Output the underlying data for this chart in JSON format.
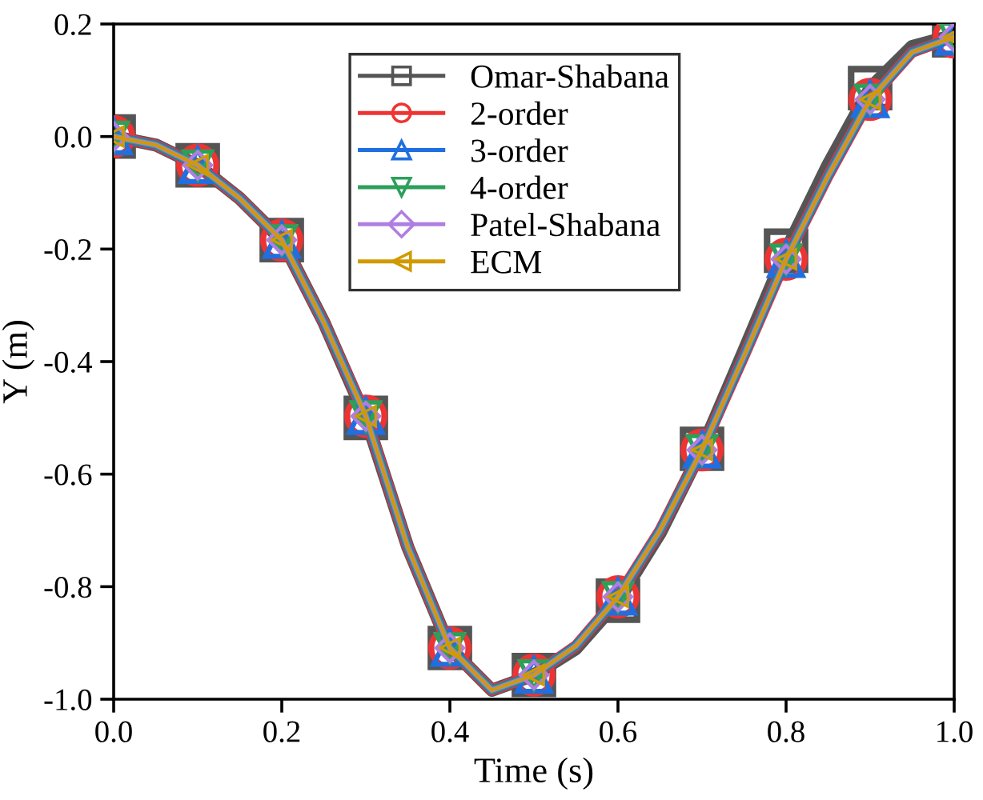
{
  "chart_data": {
    "type": "line",
    "xlabel": "Time (s)",
    "ylabel": "Y (m)",
    "x": [
      0.0,
      0.05,
      0.1,
      0.15,
      0.2,
      0.25,
      0.3,
      0.35,
      0.4,
      0.45,
      0.5,
      0.55,
      0.6,
      0.65,
      0.7,
      0.75,
      0.8,
      0.85,
      0.9,
      0.95,
      1.0
    ],
    "series": [
      {
        "name": "Omar-Shabana",
        "color": "#555555",
        "marker": "square",
        "values": [
          0.0,
          -0.015,
          -0.051,
          -0.11,
          -0.184,
          -0.33,
          -0.5,
          -0.73,
          -0.909,
          -0.984,
          -0.957,
          -0.91,
          -0.825,
          -0.705,
          -0.555,
          -0.38,
          -0.203,
          -0.05,
          0.086,
          0.16,
          0.18
        ]
      },
      {
        "name": "2-order",
        "color": "#ee3333",
        "marker": "circle",
        "values": [
          0.0,
          -0.015,
          -0.051,
          -0.11,
          -0.184,
          -0.33,
          -0.497,
          -0.73,
          -0.909,
          -0.984,
          -0.957,
          -0.905,
          -0.818,
          -0.7,
          -0.557,
          -0.39,
          -0.218,
          -0.07,
          0.066,
          0.15,
          0.177
        ]
      },
      {
        "name": "3-order",
        "color": "#1f6fe0",
        "marker": "triangle",
        "values": [
          0.0,
          -0.015,
          -0.051,
          -0.11,
          -0.184,
          -0.33,
          -0.497,
          -0.73,
          -0.909,
          -0.984,
          -0.957,
          -0.905,
          -0.818,
          -0.7,
          -0.557,
          -0.39,
          -0.218,
          -0.07,
          0.066,
          0.15,
          0.177
        ]
      },
      {
        "name": "4-order",
        "color": "#2ca05a",
        "marker": "triangle-down",
        "values": [
          0.0,
          -0.015,
          -0.051,
          -0.11,
          -0.184,
          -0.33,
          -0.497,
          -0.73,
          -0.909,
          -0.984,
          -0.957,
          -0.905,
          -0.818,
          -0.7,
          -0.557,
          -0.39,
          -0.218,
          -0.07,
          0.066,
          0.15,
          0.177
        ]
      },
      {
        "name": "Patel-Shabana",
        "color": "#b07ee0",
        "marker": "diamond",
        "values": [
          0.0,
          -0.015,
          -0.051,
          -0.11,
          -0.184,
          -0.33,
          -0.497,
          -0.73,
          -0.909,
          -0.984,
          -0.957,
          -0.905,
          -0.818,
          -0.7,
          -0.557,
          -0.39,
          -0.218,
          -0.07,
          0.066,
          0.15,
          0.177
        ]
      },
      {
        "name": "ECM",
        "color": "#d09a00",
        "marker": "triangle-left",
        "values": [
          0.0,
          -0.015,
          -0.051,
          -0.11,
          -0.184,
          -0.33,
          -0.497,
          -0.73,
          -0.909,
          -0.984,
          -0.957,
          -0.905,
          -0.818,
          -0.7,
          -0.557,
          -0.39,
          -0.218,
          -0.07,
          0.066,
          0.15,
          0.177
        ]
      }
    ],
    "xlim": [
      0.0,
      1.0
    ],
    "xticks": [
      {
        "value": 0.0,
        "label": "0.0"
      },
      0.2,
      0.4,
      0.6,
      0.8,
      {
        "value": 1.0,
        "label": "1.0"
      }
    ],
    "ylim": [
      -1.0,
      0.2
    ],
    "yticks": [
      {
        "value": -1.0,
        "label": "-1.0"
      },
      -0.8,
      -0.6,
      -0.4,
      -0.2,
      {
        "value": 0.0,
        "label": "0.0"
      },
      0.2
    ],
    "grid": false,
    "legend": "top",
    "line_style": "solid"
  }
}
